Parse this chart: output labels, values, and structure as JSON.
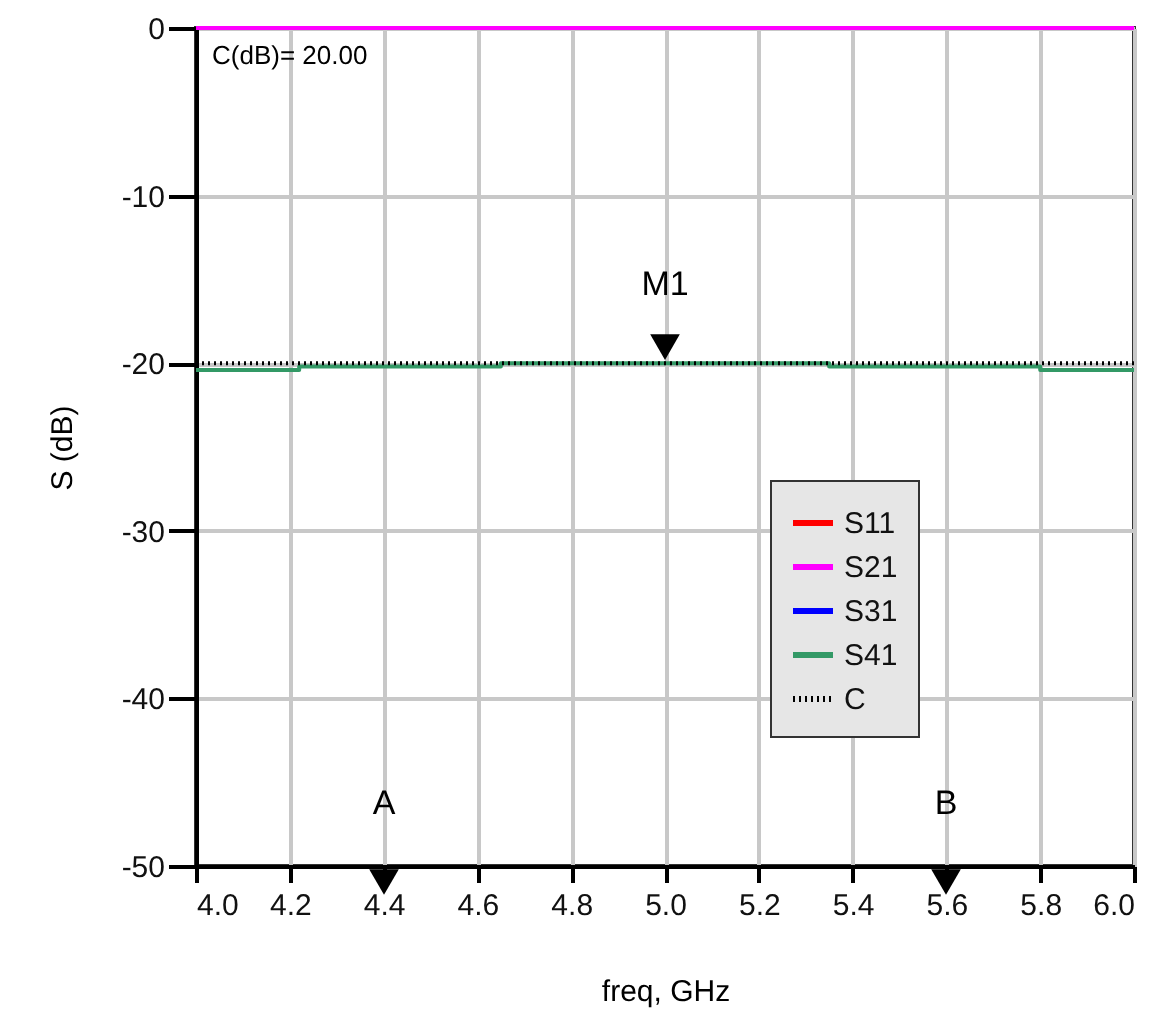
{
  "chart_data": {
    "type": "line",
    "xlabel": "freq, GHz",
    "ylabel": "S (dB)",
    "x": [
      4.0,
      4.22,
      4.22,
      4.65,
      4.65,
      5.35,
      5.35,
      5.8,
      5.8,
      6.0
    ],
    "series": [
      {
        "name": "S11",
        "color": "#ff0000",
        "values": [
          null,
          null,
          null,
          null,
          null,
          null,
          null,
          null,
          null,
          null
        ]
      },
      {
        "name": "S21",
        "color": "#ff00ff",
        "values": [
          0,
          0,
          0,
          0,
          0,
          0,
          0,
          0,
          0,
          0
        ]
      },
      {
        "name": "S31",
        "color": "#0000ff",
        "values": [
          null,
          null,
          null,
          null,
          null,
          null,
          null,
          null,
          null,
          null
        ]
      },
      {
        "name": "S41",
        "color": "#339966",
        "values": [
          -20.4,
          -20.4,
          -20.2,
          -20.2,
          -20.0,
          -20.0,
          -20.2,
          -20.2,
          -20.4,
          -20.4
        ]
      },
      {
        "name": "C",
        "color": "#000000",
        "line_style": "dotted",
        "values": [
          -20,
          -20,
          -20,
          -20,
          -20,
          -20,
          -20,
          -20,
          -20,
          -20
        ]
      }
    ],
    "xlim": [
      4.0,
      6.0
    ],
    "xticks": [
      {
        "value": 4.0,
        "label": "4.0"
      },
      4.2,
      4.4,
      4.6,
      4.8,
      {
        "value": 5.0,
        "label": "5.0"
      },
      5.2,
      5.4,
      5.6,
      5.8,
      {
        "value": 6.0,
        "label": "6.0"
      }
    ],
    "ylim": [
      -50,
      0
    ],
    "yticks": [
      -50,
      -40,
      -30,
      -20,
      -10,
      0
    ],
    "grid": true,
    "legend": "bottom right",
    "line_style": "solid",
    "annotations": [
      "C(dB)= 20.00",
      {
        "text": "M1",
        "x": 5.0,
        "y": -20
      },
      "A",
      "B"
    ]
  }
}
